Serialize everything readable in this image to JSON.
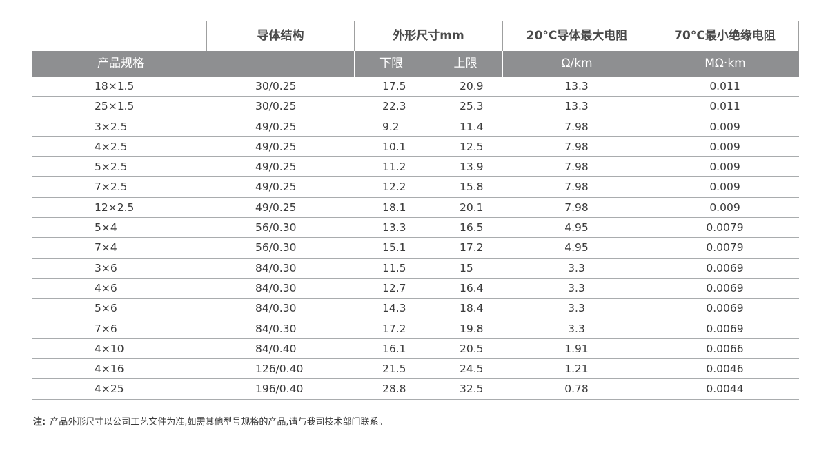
{
  "header": {
    "conductor": "导体结构",
    "dimension": "外形尺寸mm",
    "resistance": "20°C导体最大电阻",
    "insulation": "70°C最小绝缘电阻",
    "spec": "产品规格",
    "lower": "下限",
    "upper": "上限",
    "res_unit": "Ω/km",
    "ins_unit": "MΩ·km"
  },
  "rows": [
    {
      "spec": "18×1.5",
      "conductor": "30/0.25",
      "lower": "17.5",
      "upper": "20.9",
      "resistance": "13.3",
      "insulation": "0.011"
    },
    {
      "spec": "25×1.5",
      "conductor": "30/0.25",
      "lower": "22.3",
      "upper": "25.3",
      "resistance": "13.3",
      "insulation": "0.011"
    },
    {
      "spec": "3×2.5",
      "conductor": "49/0.25",
      "lower": "9.2",
      "upper": "11.4",
      "resistance": "7.98",
      "insulation": "0.009"
    },
    {
      "spec": "4×2.5",
      "conductor": "49/0.25",
      "lower": "10.1",
      "upper": "12.5",
      "resistance": "7.98",
      "insulation": "0.009"
    },
    {
      "spec": "5×2.5",
      "conductor": "49/0.25",
      "lower": "11.2",
      "upper": "13.9",
      "resistance": "7.98",
      "insulation": "0.009"
    },
    {
      "spec": "7×2.5",
      "conductor": "49/0.25",
      "lower": "12.2",
      "upper": "15.8",
      "resistance": "7.98",
      "insulation": "0.009"
    },
    {
      "spec": "12×2.5",
      "conductor": "49/0.25",
      "lower": "18.1",
      "upper": "20.1",
      "resistance": "7.98",
      "insulation": "0.009"
    },
    {
      "spec": "5×4",
      "conductor": "56/0.30",
      "lower": "13.3",
      "upper": "16.5",
      "resistance": "4.95",
      "insulation": "0.0079"
    },
    {
      "spec": "7×4",
      "conductor": "56/0.30",
      "lower": "15.1",
      "upper": "17.2",
      "resistance": "4.95",
      "insulation": "0.0079"
    },
    {
      "spec": "3×6",
      "conductor": "84/0.30",
      "lower": "11.5",
      "upper": "15",
      "resistance": "3.3",
      "insulation": "0.0069"
    },
    {
      "spec": "4×6",
      "conductor": "84/0.30",
      "lower": "12.7",
      "upper": "16.4",
      "resistance": "3.3",
      "insulation": "0.0069"
    },
    {
      "spec": "5×6",
      "conductor": "84/0.30",
      "lower": "14.3",
      "upper": "18.4",
      "resistance": "3.3",
      "insulation": "0.0069"
    },
    {
      "spec": "7×6",
      "conductor": "84/0.30",
      "lower": "17.2",
      "upper": "19.8",
      "resistance": "3.3",
      "insulation": "0.0069"
    },
    {
      "spec": "4×10",
      "conductor": "84/0.40",
      "lower": "16.1",
      "upper": "20.5",
      "resistance": "1.91",
      "insulation": "0.0066"
    },
    {
      "spec": "4×16",
      "conductor": "126/0.40",
      "lower": "21.5",
      "upper": "24.5",
      "resistance": "1.21",
      "insulation": "0.0046"
    },
    {
      "spec": "4×25",
      "conductor": "196/0.40",
      "lower": "28.8",
      "upper": "32.5",
      "resistance": "0.78",
      "insulation": "0.0044"
    }
  ],
  "note": {
    "label": "注:",
    "text": "产品外形尺寸以公司工艺文件为准,如需其他型号规格的产品,请与我司技术部门联系。"
  }
}
